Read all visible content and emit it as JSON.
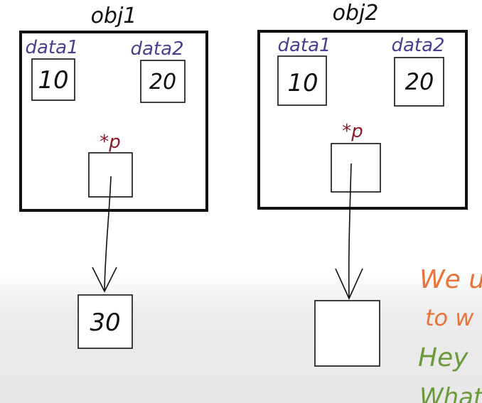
{
  "colors": {
    "ink": "#111111",
    "member_label": "#4a3f8f",
    "pointer_label": "#8b1a2a",
    "note_orange": "#e8743a",
    "note_green": "#6a9a3a",
    "background_fade": "#e9e9e9"
  },
  "objects": [
    {
      "name": "obj1",
      "members": [
        {
          "label": "data1",
          "value": "10"
        },
        {
          "label": "data2",
          "value": "20"
        }
      ],
      "pointer": {
        "label": "*p"
      },
      "heap_value": "30"
    },
    {
      "name": "obj2",
      "members": [
        {
          "label": "data1",
          "value": "10"
        },
        {
          "label": "data2",
          "value": "20"
        }
      ],
      "pointer": {
        "label": "*p"
      },
      "heap_value": ""
    }
  ],
  "side_notes": [
    {
      "text": "We u",
      "color_key": "note_orange"
    },
    {
      "text": "to w",
      "color_key": "note_orange"
    },
    {
      "text": "Hey",
      "color_key": "note_green"
    },
    {
      "text": "What",
      "color_key": "note_green"
    }
  ]
}
